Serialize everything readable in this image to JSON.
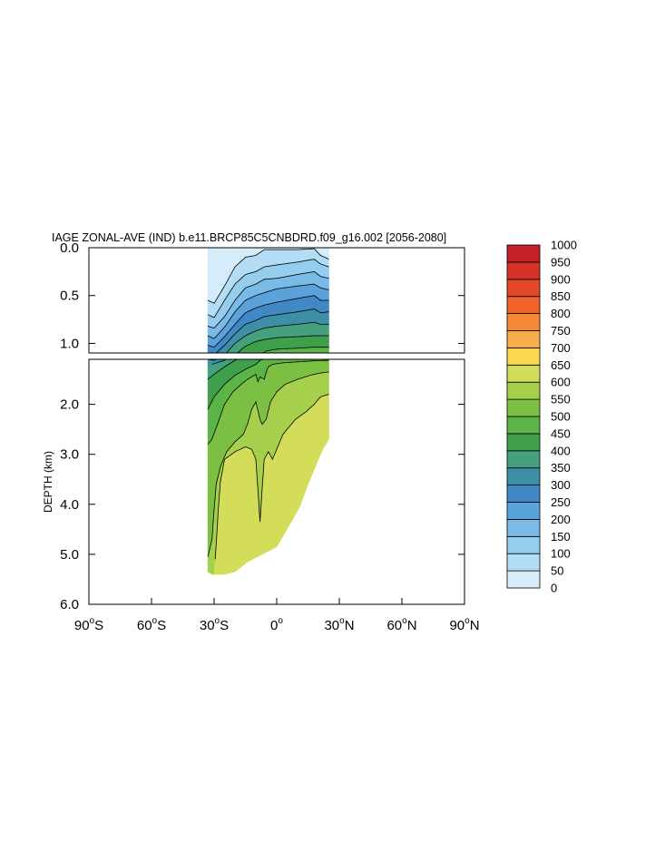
{
  "chart_data": {
    "type": "contour",
    "title": "IAGE ZONAL-AVE (IND) b.e11.BRCP85C5CNBDRD.f09_g16.002 [2056-2080]",
    "ylabel": "DEPTH (km)",
    "xlabel": "",
    "x_ticks": [
      {
        "lat": -90,
        "text": "90",
        "hemi": "S"
      },
      {
        "lat": -60,
        "text": "60",
        "hemi": "S"
      },
      {
        "lat": -30,
        "text": "30",
        "hemi": "S"
      },
      {
        "lat": 0,
        "text": "0",
        "hemi": ""
      },
      {
        "lat": 30,
        "text": "30",
        "hemi": "N"
      },
      {
        "lat": 60,
        "text": "60",
        "hemi": "N"
      },
      {
        "lat": 90,
        "text": "90",
        "hemi": "N"
      }
    ],
    "xlim": [
      -90,
      90
    ],
    "upper_panel": {
      "ylim": [
        0,
        1.1
      ],
      "y_ticks": [
        {
          "v": 0,
          "t": "0.0"
        },
        {
          "v": 0.5,
          "t": "0.5"
        },
        {
          "v": 1.0,
          "t": "1.0"
        }
      ]
    },
    "lower_panel": {
      "ylim": [
        1.1,
        6.0
      ],
      "y_ticks": [
        {
          "v": 2,
          "t": "2.0"
        },
        {
          "v": 3,
          "t": "3.0"
        },
        {
          "v": 4,
          "t": "4.0"
        },
        {
          "v": 5,
          "t": "5.0"
        },
        {
          "v": 6,
          "t": "6.0"
        }
      ]
    },
    "colorbar": {
      "levels": [
        0,
        50,
        100,
        150,
        200,
        250,
        300,
        350,
        400,
        450,
        500,
        550,
        600,
        650,
        700,
        750,
        800,
        850,
        900,
        950,
        1000
      ],
      "colors": [
        "#d6ecfa",
        "#b3ddf5",
        "#95cdee",
        "#7abae6",
        "#5ba2db",
        "#4188c6",
        "#3d8fa6",
        "#45a07e",
        "#3f9f4b",
        "#5cb347",
        "#7cc043",
        "#a6cf4c",
        "#d4dd5a",
        "#f9d750",
        "#f7ae4a",
        "#f58a35",
        "#ef6329",
        "#e3482a",
        "#d43227",
        "#c32127"
      ]
    },
    "section": {
      "lat_range": [
        -33,
        25
      ],
      "depth_profile": [
        {
          "lat": -33,
          "max_depth": 5.35
        },
        {
          "lat": -31,
          "max_depth": 5.4
        },
        {
          "lat": -25,
          "max_depth": 5.4
        },
        {
          "lat": -20,
          "max_depth": 5.35
        },
        {
          "lat": -14,
          "max_depth": 5.15
        },
        {
          "lat": 0,
          "max_depth": 4.85
        },
        {
          "lat": 7,
          "max_depth": 4.35
        },
        {
          "lat": 11,
          "max_depth": 4.05
        },
        {
          "lat": 15,
          "max_depth": 3.6
        },
        {
          "lat": 19,
          "max_depth": 3.2
        },
        {
          "lat": 22,
          "max_depth": 2.9
        },
        {
          "lat": 25,
          "max_depth": 2.7
        }
      ],
      "contours": [
        {
          "level": 50,
          "points": [
            [
              -33,
              0.55
            ],
            [
              -30,
              0.58
            ],
            [
              -25,
              0.4
            ],
            [
              -20,
              0.2
            ],
            [
              -15,
              0.1
            ],
            [
              -10,
              0.08
            ],
            [
              -6,
              0.02
            ],
            [
              0,
              0.02
            ],
            [
              10,
              0.02
            ],
            [
              18,
              0.01
            ],
            [
              21,
              0.08
            ],
            [
              25,
              0.12
            ]
          ]
        },
        {
          "level": 100,
          "points": [
            [
              -33,
              0.7
            ],
            [
              -30,
              0.73
            ],
            [
              -25,
              0.55
            ],
            [
              -20,
              0.38
            ],
            [
              -15,
              0.28
            ],
            [
              -10,
              0.25
            ],
            [
              -6,
              0.2
            ],
            [
              0,
              0.18
            ],
            [
              10,
              0.15
            ],
            [
              18,
              0.12
            ],
            [
              21,
              0.17
            ],
            [
              25,
              0.2
            ]
          ]
        },
        {
          "level": 150,
          "points": [
            [
              -33,
              0.82
            ],
            [
              -30,
              0.84
            ],
            [
              -25,
              0.72
            ],
            [
              -20,
              0.55
            ],
            [
              -15,
              0.42
            ],
            [
              -10,
              0.38
            ],
            [
              -6,
              0.33
            ],
            [
              0,
              0.32
            ],
            [
              10,
              0.28
            ],
            [
              18,
              0.25
            ],
            [
              21,
              0.3
            ],
            [
              25,
              0.32
            ]
          ]
        },
        {
          "level": 200,
          "points": [
            [
              -33,
              0.92
            ],
            [
              -30,
              0.95
            ],
            [
              -25,
              0.83
            ],
            [
              -20,
              0.67
            ],
            [
              -15,
              0.55
            ],
            [
              -10,
              0.5
            ],
            [
              -6,
              0.47
            ],
            [
              0,
              0.43
            ],
            [
              10,
              0.4
            ],
            [
              18,
              0.38
            ],
            [
              21,
              0.42
            ],
            [
              25,
              0.44
            ]
          ]
        },
        {
          "level": 250,
          "points": [
            [
              -33,
              1.02
            ],
            [
              -30,
              1.04
            ],
            [
              -25,
              0.93
            ],
            [
              -20,
              0.8
            ],
            [
              -15,
              0.68
            ],
            [
              -10,
              0.63
            ],
            [
              -6,
              0.6
            ],
            [
              0,
              0.57
            ],
            [
              10,
              0.53
            ],
            [
              18,
              0.5
            ],
            [
              21,
              0.55
            ],
            [
              25,
              0.55
            ]
          ]
        },
        {
          "level": 300,
          "points": [
            [
              -33,
              1.1
            ],
            [
              -30,
              1.12
            ],
            [
              -25,
              1.02
            ],
            [
              -20,
              0.9
            ],
            [
              -15,
              0.8
            ],
            [
              -10,
              0.76
            ],
            [
              -6,
              0.72
            ],
            [
              0,
              0.7
            ],
            [
              10,
              0.67
            ],
            [
              18,
              0.64
            ],
            [
              21,
              0.68
            ],
            [
              25,
              0.67
            ]
          ]
        },
        {
          "level": 350,
          "points": [
            [
              -31,
              1.2
            ],
            [
              -25,
              1.12
            ],
            [
              -20,
              1.0
            ],
            [
              -15,
              0.92
            ],
            [
              -10,
              0.87
            ],
            [
              -6,
              0.84
            ],
            [
              0,
              0.82
            ],
            [
              10,
              0.8
            ],
            [
              18,
              0.78
            ],
            [
              21,
              0.8
            ],
            [
              25,
              0.8
            ]
          ]
        },
        {
          "level": 400,
          "points": [
            [
              -33,
              1.5
            ],
            [
              -30,
              1.4
            ],
            [
              -25,
              1.25
            ],
            [
              -20,
              1.12
            ],
            [
              -15,
              1.03
            ],
            [
              -10,
              0.98
            ],
            [
              -6,
              0.96
            ],
            [
              0,
              0.94
            ],
            [
              10,
              0.93
            ],
            [
              18,
              0.92
            ],
            [
              21,
              0.92
            ],
            [
              25,
              0.92
            ]
          ]
        },
        {
          "level": 450,
          "points": [
            [
              -33,
              2.1
            ],
            [
              -30,
              1.85
            ],
            [
              -25,
              1.6
            ],
            [
              -20,
              1.42
            ],
            [
              -15,
              1.3
            ],
            [
              -10,
              1.2
            ],
            [
              -8,
              1.12
            ],
            [
              -5,
              1.08
            ],
            [
              0,
              1.06
            ],
            [
              10,
              1.05
            ],
            [
              18,
              1.04
            ],
            [
              25,
              1.04
            ]
          ]
        },
        {
          "level": 500,
          "points": [
            [
              -33,
              2.8
            ],
            [
              -31,
              2.7
            ],
            [
              -28,
              2.35
            ],
            [
              -25,
              2.0
            ],
            [
              -21,
              1.75
            ],
            [
              -17,
              1.6
            ],
            [
              -14,
              1.5
            ],
            [
              -12,
              1.45
            ],
            [
              -10,
              1.4
            ],
            [
              -9,
              1.55
            ],
            [
              -8,
              1.45
            ],
            [
              -6,
              1.5
            ],
            [
              -5,
              1.35
            ],
            [
              -4,
              1.25
            ],
            [
              -2,
              1.2
            ],
            [
              3,
              1.17
            ],
            [
              10,
              1.15
            ],
            [
              18,
              1.13
            ],
            [
              25,
              1.12
            ]
          ]
        },
        {
          "level": 550,
          "points": [
            [
              -33,
              5.05
            ],
            [
              -31,
              4.7
            ],
            [
              -30,
              4.1
            ],
            [
              -29,
              3.6
            ],
            [
              -27,
              3.25
            ],
            [
              -24,
              2.95
            ],
            [
              -20,
              2.75
            ],
            [
              -16,
              2.6
            ],
            [
              -14,
              2.4
            ],
            [
              -12,
              2.1
            ],
            [
              -10,
              1.95
            ],
            [
              -8,
              2.3
            ],
            [
              -7,
              2.4
            ],
            [
              -5,
              2.3
            ],
            [
              -3,
              1.95
            ],
            [
              0,
              1.75
            ],
            [
              4,
              1.6
            ],
            [
              10,
              1.5
            ],
            [
              16,
              1.42
            ],
            [
              20,
              1.38
            ],
            [
              25,
              1.35
            ]
          ]
        },
        {
          "level": 600,
          "points": [
            [
              -30,
              5.4
            ],
            [
              -29,
              4.8
            ],
            [
              -28,
              4.1
            ],
            [
              -27,
              3.55
            ],
            [
              -25,
              3.1
            ],
            [
              -20,
              2.95
            ],
            [
              -15,
              2.85
            ],
            [
              -12,
              2.9
            ],
            [
              -10,
              3.1
            ],
            [
              -9,
              3.7
            ],
            [
              -8,
              4.35
            ],
            [
              -7,
              3.7
            ],
            [
              -6,
              3.1
            ],
            [
              -4,
              2.95
            ],
            [
              -2,
              3.1
            ],
            [
              0,
              2.9
            ],
            [
              3,
              2.6
            ],
            [
              6,
              2.45
            ],
            [
              9,
              2.3
            ],
            [
              14,
              2.15
            ],
            [
              18,
              2.0
            ],
            [
              21,
              1.85
            ],
            [
              25,
              1.8
            ]
          ]
        }
      ]
    }
  }
}
